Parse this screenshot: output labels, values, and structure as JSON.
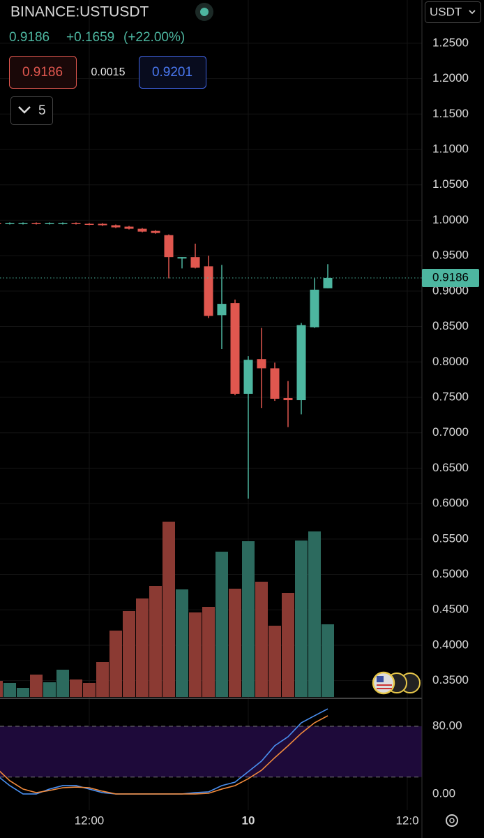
{
  "header": {
    "symbol": "BINANCE:USTUSDT",
    "last": "0.9186",
    "change": "+0.1659",
    "change_pct": "(+22.00%)",
    "bid": "0.9186",
    "spread": "0.0015",
    "ask": "0.9201",
    "indicator_count": "5",
    "currency": "USDT"
  },
  "chart_data": [
    {
      "type": "candlestick",
      "up_color": "#4db6a0",
      "down_color": "#e0574f",
      "open": [
        0.996,
        0.995,
        0.995,
        0.996,
        0.995,
        0.995,
        0.996,
        0.995,
        0.995,
        0.993,
        0.991,
        0.988,
        0.985,
        0.979,
        0.946,
        0.948,
        0.935,
        0.866,
        0.883,
        0.755,
        0.804,
        0.791,
        0.749,
        0.746,
        0.849,
        0.904
      ],
      "high": [
        0.997,
        0.997,
        0.997,
        0.997,
        0.997,
        0.997,
        0.997,
        0.996,
        0.996,
        0.994,
        0.992,
        0.989,
        0.986,
        0.98,
        0.948,
        0.967,
        0.95,
        0.937,
        0.888,
        0.808,
        0.848,
        0.799,
        0.773,
        0.855,
        0.918,
        0.938
      ],
      "low": [
        0.994,
        0.994,
        0.994,
        0.994,
        0.994,
        0.994,
        0.994,
        0.993,
        0.992,
        0.989,
        0.987,
        0.983,
        0.981,
        0.918,
        0.932,
        0.932,
        0.862,
        0.818,
        0.753,
        0.607,
        0.735,
        0.745,
        0.708,
        0.726,
        0.848,
        0.904
      ],
      "close": [
        0.995,
        0.996,
        0.996,
        0.995,
        0.996,
        0.996,
        0.995,
        0.994,
        0.993,
        0.99,
        0.988,
        0.984,
        0.982,
        0.948,
        0.948,
        0.933,
        0.865,
        0.882,
        0.755,
        0.803,
        0.791,
        0.748,
        0.746,
        0.852,
        0.902,
        0.9186
      ],
      "ylim": [
        0.327,
        1.311
      ],
      "yticks": [
        {
          "value": 1.25,
          "label": "1.2500"
        },
        {
          "value": 1.2,
          "label": "1.2000"
        },
        {
          "value": 1.15,
          "label": "1.1500"
        },
        {
          "value": 1.1,
          "label": "1.1000"
        },
        {
          "value": 1.05,
          "label": "1.0500"
        },
        {
          "value": 1.0,
          "label": "1.0000"
        },
        {
          "value": 0.95,
          "label": "0.9500"
        },
        {
          "value": 0.9,
          "label": "0.9000"
        },
        {
          "value": 0.85,
          "label": "0.8500"
        },
        {
          "value": 0.8,
          "label": "0.8000"
        },
        {
          "value": 0.75,
          "label": "0.7500"
        },
        {
          "value": 0.7,
          "label": "0.7000"
        },
        {
          "value": 0.65,
          "label": "0.6500"
        },
        {
          "value": 0.6,
          "label": "0.6000"
        },
        {
          "value": 0.55,
          "label": "0.5500"
        },
        {
          "value": 0.5,
          "label": "0.5000"
        },
        {
          "value": 0.45,
          "label": "0.4500"
        },
        {
          "value": 0.4,
          "label": "0.4000"
        },
        {
          "value": 0.35,
          "label": "0.3500"
        }
      ],
      "xticks": [
        {
          "value": 7,
          "label": "12:00"
        },
        {
          "value": 19,
          "label": "10"
        },
        {
          "value": 31,
          "label": "12:0"
        }
      ],
      "grid": true
    },
    {
      "type": "volume",
      "up_color": "#2c6a5e",
      "down_color": "#8b3a33",
      "values": [
        23,
        20,
        13,
        32,
        21,
        39,
        25,
        20,
        50,
        95,
        123,
        141,
        159,
        251,
        154,
        121,
        129,
        208,
        155,
        223,
        165,
        102,
        149,
        224,
        237,
        104
      ],
      "ylim": [
        0,
        300
      ]
    },
    {
      "type": "line",
      "band": [
        20,
        80
      ],
      "band_color": "#1e0a3a",
      "series": [
        {
          "color": "#4a8ff0",
          "values": [
            22.3,
            9.9,
            0,
            0,
            5.8,
            9.9,
            9.9,
            5.8,
            1.6,
            0,
            0,
            0,
            0,
            0,
            0,
            1.6,
            2.5,
            9.9,
            14,
            26.4,
            38.8,
            57,
            67.6,
            84.1,
            92.4,
            100.6
          ]
        },
        {
          "color": "#f08a3c",
          "values": [
            30.5,
            15.7,
            5.8,
            1.6,
            4.1,
            7.4,
            8.2,
            7.4,
            3.3,
            0,
            0,
            0,
            0,
            0,
            0,
            0,
            0.8,
            5.8,
            9.9,
            18.1,
            28,
            42.9,
            56.9,
            71.7,
            84.1,
            92.4
          ]
        }
      ],
      "ylim": [
        -19,
        113
      ],
      "yticks": [
        {
          "value": 80,
          "label": "80.00"
        },
        {
          "value": 0,
          "label": "0.00"
        }
      ]
    }
  ]
}
